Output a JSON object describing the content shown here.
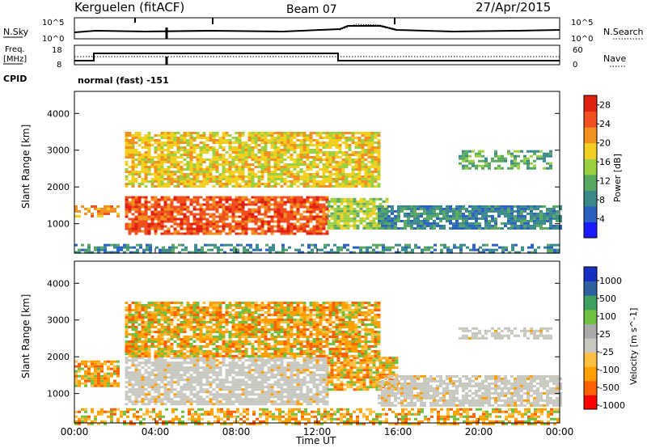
{
  "header": {
    "title": "Kerguelen (fitACF)",
    "beam": "Beam 07",
    "date": "27/Apr/2015"
  },
  "top_panels": {
    "nsky_label": "N.Sky",
    "nsky_ticks": [
      "10^5",
      "10^0"
    ],
    "nsearch_label": "N.Search",
    "nsearch_ticks": [
      "10^5",
      "10^0"
    ],
    "freq_label_1": "Freq.",
    "freq_label_2": "[MHz]",
    "freq_ticks": [
      "18",
      "8"
    ],
    "nave_label": "Nave",
    "nave_ticks": [
      "60",
      "0"
    ],
    "cpid_label": "CPID",
    "cpid_value": "normal (fast) -151"
  },
  "colors": {
    "power": [
      "#1a1aff",
      "#2b5fc0",
      "#3a8a8a",
      "#58a860",
      "#9cd040",
      "#f2d020",
      "#f29020",
      "#f05020",
      "#e02010"
    ],
    "velocity": [
      "#ff0000",
      "#ff6000",
      "#ffa000",
      "#ffc040",
      "#c8c8c0",
      "#aaaaaa",
      "#70c040",
      "#40a060",
      "#3060a0",
      "#1830c0"
    ]
  },
  "chart_data": [
    {
      "type": "heatmap",
      "quantity": "power",
      "xlabel": "",
      "ylabel": "Slant Range [km]",
      "xlim_hours": [
        0,
        24
      ],
      "ylim": [
        200,
        4600
      ],
      "y_ticks": [
        "1000",
        "2000",
        "3000",
        "4000"
      ],
      "colorbar_label": "Power [dB]",
      "colorbar_ticks": [
        "4",
        "8",
        "12",
        "16",
        "20",
        "24",
        "28"
      ],
      "colorbar_range": [
        0,
        30
      ],
      "features": [
        {
          "x0": 2.5,
          "x1": 12.5,
          "y0": 700,
          "y1": 1750,
          "level": 26
        },
        {
          "x0": 0,
          "x1": 2.2,
          "y0": 1200,
          "y1": 1500,
          "level": 22
        },
        {
          "x0": 12.5,
          "x1": 15.5,
          "y0": 900,
          "y1": 1700,
          "level": 16
        },
        {
          "x0": 2.5,
          "x1": 15,
          "y0": 2000,
          "y1": 3500,
          "level": 20
        },
        {
          "x0": 19,
          "x1": 23.5,
          "y0": 2500,
          "y1": 3000,
          "level": 10
        },
        {
          "x0": 15,
          "x1": 24,
          "y0": 900,
          "y1": 1500,
          "level": 8
        },
        {
          "x0": 0,
          "x1": 24,
          "y0": 200,
          "y1": 450,
          "level": 6
        }
      ]
    },
    {
      "type": "heatmap",
      "quantity": "velocity",
      "xlabel": "Time UT",
      "ylabel": "Slant Range [km]",
      "xlim_hours": [
        0,
        24
      ],
      "ylim": [
        200,
        4600
      ],
      "x_ticks": [
        "00:00",
        "04:00",
        "08:00",
        "12:00",
        "16:00",
        "20:00",
        "00:00"
      ],
      "y_ticks": [
        "1000",
        "2000",
        "3000",
        "4000"
      ],
      "colorbar_label": "Velocity [m s^-1]",
      "colorbar_ticks": [
        "1000",
        "500",
        "100",
        "25",
        "-25",
        "-100",
        "-500",
        "-1000"
      ],
      "features": [
        {
          "x0": 2.5,
          "x1": 12.5,
          "y0": 700,
          "y1": 2000,
          "class": "gray"
        },
        {
          "x0": 12.5,
          "x1": 16,
          "y0": 1100,
          "y1": 2000,
          "class": "orange"
        },
        {
          "x0": 2.5,
          "x1": 15,
          "y0": 2000,
          "y1": 3500,
          "class": "orange"
        },
        {
          "x0": 0,
          "x1": 2.2,
          "y0": 1200,
          "y1": 1900,
          "class": "orange"
        },
        {
          "x0": 19,
          "x1": 23.5,
          "y0": 2500,
          "y1": 2800,
          "class": "gray"
        },
        {
          "x0": 15,
          "x1": 24,
          "y0": 700,
          "y1": 1500,
          "class": "gray"
        },
        {
          "x0": 0,
          "x1": 24,
          "y0": 200,
          "y1": 600,
          "class": "orange"
        }
      ]
    }
  ]
}
